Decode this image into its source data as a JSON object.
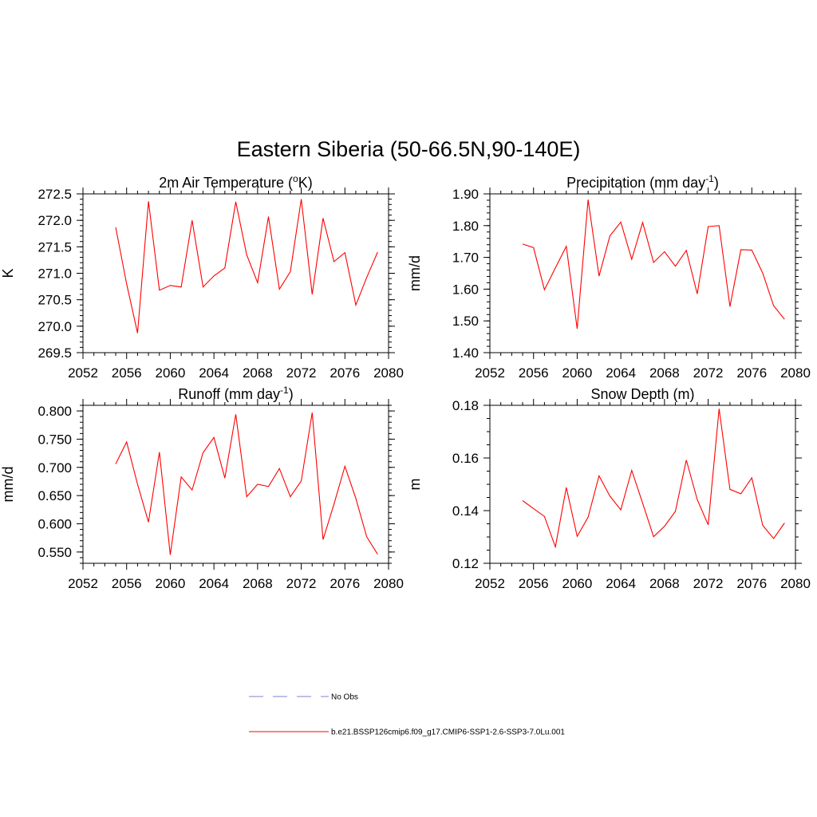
{
  "figure": {
    "title": "Eastern Siberia (50-66.5N,90-140E)"
  },
  "legend": [
    {
      "label": "No Obs",
      "color": "#9999dd",
      "style": "dashed"
    },
    {
      "label": "b.e21.BSSP126cmip6.f09_g17.CMIP6-SSP1-2.6-SSP3-7.0Lu.001",
      "color": "#ff0000",
      "style": "solid"
    }
  ],
  "chart_data": [
    {
      "type": "line",
      "title": "2m Air Temperature (",
      "title_sup": "o",
      "title_tail": "K)",
      "ylabel": "K",
      "xlim": [
        2052,
        2080
      ],
      "ylim": [
        269.5,
        272.5
      ],
      "x_ticks": [
        2052,
        2056,
        2060,
        2064,
        2068,
        2072,
        2076,
        2080
      ],
      "y_ticks": [
        "269.5",
        "270.0",
        "270.5",
        "271.0",
        "271.5",
        "272.0",
        "272.5"
      ],
      "y_minor_step": 0.1,
      "x": [
        2055,
        2056,
        2057,
        2058,
        2059,
        2060,
        2061,
        2062,
        2063,
        2064,
        2065,
        2066,
        2067,
        2068,
        2069,
        2070,
        2071,
        2072,
        2073,
        2074,
        2075,
        2076,
        2077,
        2078,
        2079
      ],
      "series": [
        {
          "color": "#ff0000",
          "values": [
            271.87,
            270.8,
            269.87,
            272.36,
            270.68,
            270.77,
            270.74,
            272.0,
            270.74,
            270.95,
            271.1,
            272.35,
            271.35,
            270.82,
            272.07,
            270.7,
            271.03,
            272.4,
            270.6,
            272.04,
            271.22,
            271.39,
            270.4,
            270.92,
            271.4
          ]
        }
      ]
    },
    {
      "type": "line",
      "title": "Precipitation (mm day",
      "title_sup": "-1",
      "title_tail": ")",
      "ylabel": "mm/d",
      "xlim": [
        2052,
        2080
      ],
      "ylim": [
        1.4,
        1.9
      ],
      "x_ticks": [
        2052,
        2056,
        2060,
        2064,
        2068,
        2072,
        2076,
        2080
      ],
      "y_ticks": [
        "1.40",
        "1.50",
        "1.60",
        "1.70",
        "1.80",
        "1.90"
      ],
      "y_minor_step": 0.02,
      "x": [
        2055,
        2056,
        2057,
        2058,
        2059,
        2060,
        2061,
        2062,
        2063,
        2064,
        2065,
        2066,
        2067,
        2068,
        2069,
        2070,
        2071,
        2072,
        2073,
        2074,
        2075,
        2076,
        2077,
        2078,
        2079
      ],
      "series": [
        {
          "color": "#ff0000",
          "values": [
            1.742,
            1.731,
            1.598,
            1.667,
            1.735,
            1.475,
            1.882,
            1.641,
            1.768,
            1.811,
            1.694,
            1.81,
            1.684,
            1.718,
            1.672,
            1.722,
            1.585,
            1.797,
            1.8,
            1.545,
            1.724,
            1.723,
            1.65,
            1.548,
            1.505
          ]
        }
      ]
    },
    {
      "type": "line",
      "title": "Runoff (mm day",
      "title_sup": "-1",
      "title_tail": ")",
      "ylabel": "mm/d",
      "xlim": [
        2052,
        2080
      ],
      "ylim": [
        0.53,
        0.81
      ],
      "x_ticks": [
        2052,
        2056,
        2060,
        2064,
        2068,
        2072,
        2076,
        2080
      ],
      "y_ticks": [
        "0.550",
        "0.600",
        "0.650",
        "0.700",
        "0.750",
        "0.800"
      ],
      "y_minor_step": 0.01,
      "x": [
        2055,
        2056,
        2057,
        2058,
        2059,
        2060,
        2061,
        2062,
        2063,
        2064,
        2065,
        2066,
        2067,
        2068,
        2069,
        2070,
        2071,
        2072,
        2073,
        2074,
        2075,
        2076,
        2077,
        2078,
        2079
      ],
      "series": [
        {
          "color": "#ff0000",
          "values": [
            0.706,
            0.745,
            0.67,
            0.603,
            0.727,
            0.545,
            0.683,
            0.66,
            0.726,
            0.753,
            0.681,
            0.794,
            0.648,
            0.67,
            0.666,
            0.698,
            0.648,
            0.676,
            0.797,
            0.572,
            0.635,
            0.702,
            0.645,
            0.577,
            0.546
          ]
        }
      ]
    },
    {
      "type": "line",
      "title": "Snow Depth (m)",
      "title_sup": "",
      "title_tail": "",
      "ylabel": "m",
      "xlim": [
        2052,
        2080
      ],
      "ylim": [
        0.12,
        0.18
      ],
      "x_ticks": [
        2052,
        2056,
        2060,
        2064,
        2068,
        2072,
        2076,
        2080
      ],
      "y_ticks": [
        "0.12",
        "0.14",
        "0.16",
        "0.18"
      ],
      "y_minor_step": 0.005,
      "x": [
        2055,
        2056,
        2057,
        2058,
        2059,
        2060,
        2061,
        2062,
        2063,
        2064,
        2065,
        2066,
        2067,
        2068,
        2069,
        2070,
        2071,
        2072,
        2073,
        2074,
        2075,
        2076,
        2077,
        2078,
        2079
      ],
      "series": [
        {
          "color": "#ff0000",
          "values": [
            0.1438,
            0.1408,
            0.1378,
            0.1262,
            0.1488,
            0.1302,
            0.1375,
            0.1532,
            0.1455,
            0.1403,
            0.1553,
            0.1428,
            0.1301,
            0.1341,
            0.1397,
            0.1592,
            0.1442,
            0.1346,
            0.1787,
            0.1481,
            0.1464,
            0.1525,
            0.1344,
            0.1294,
            0.1353
          ]
        }
      ]
    }
  ]
}
